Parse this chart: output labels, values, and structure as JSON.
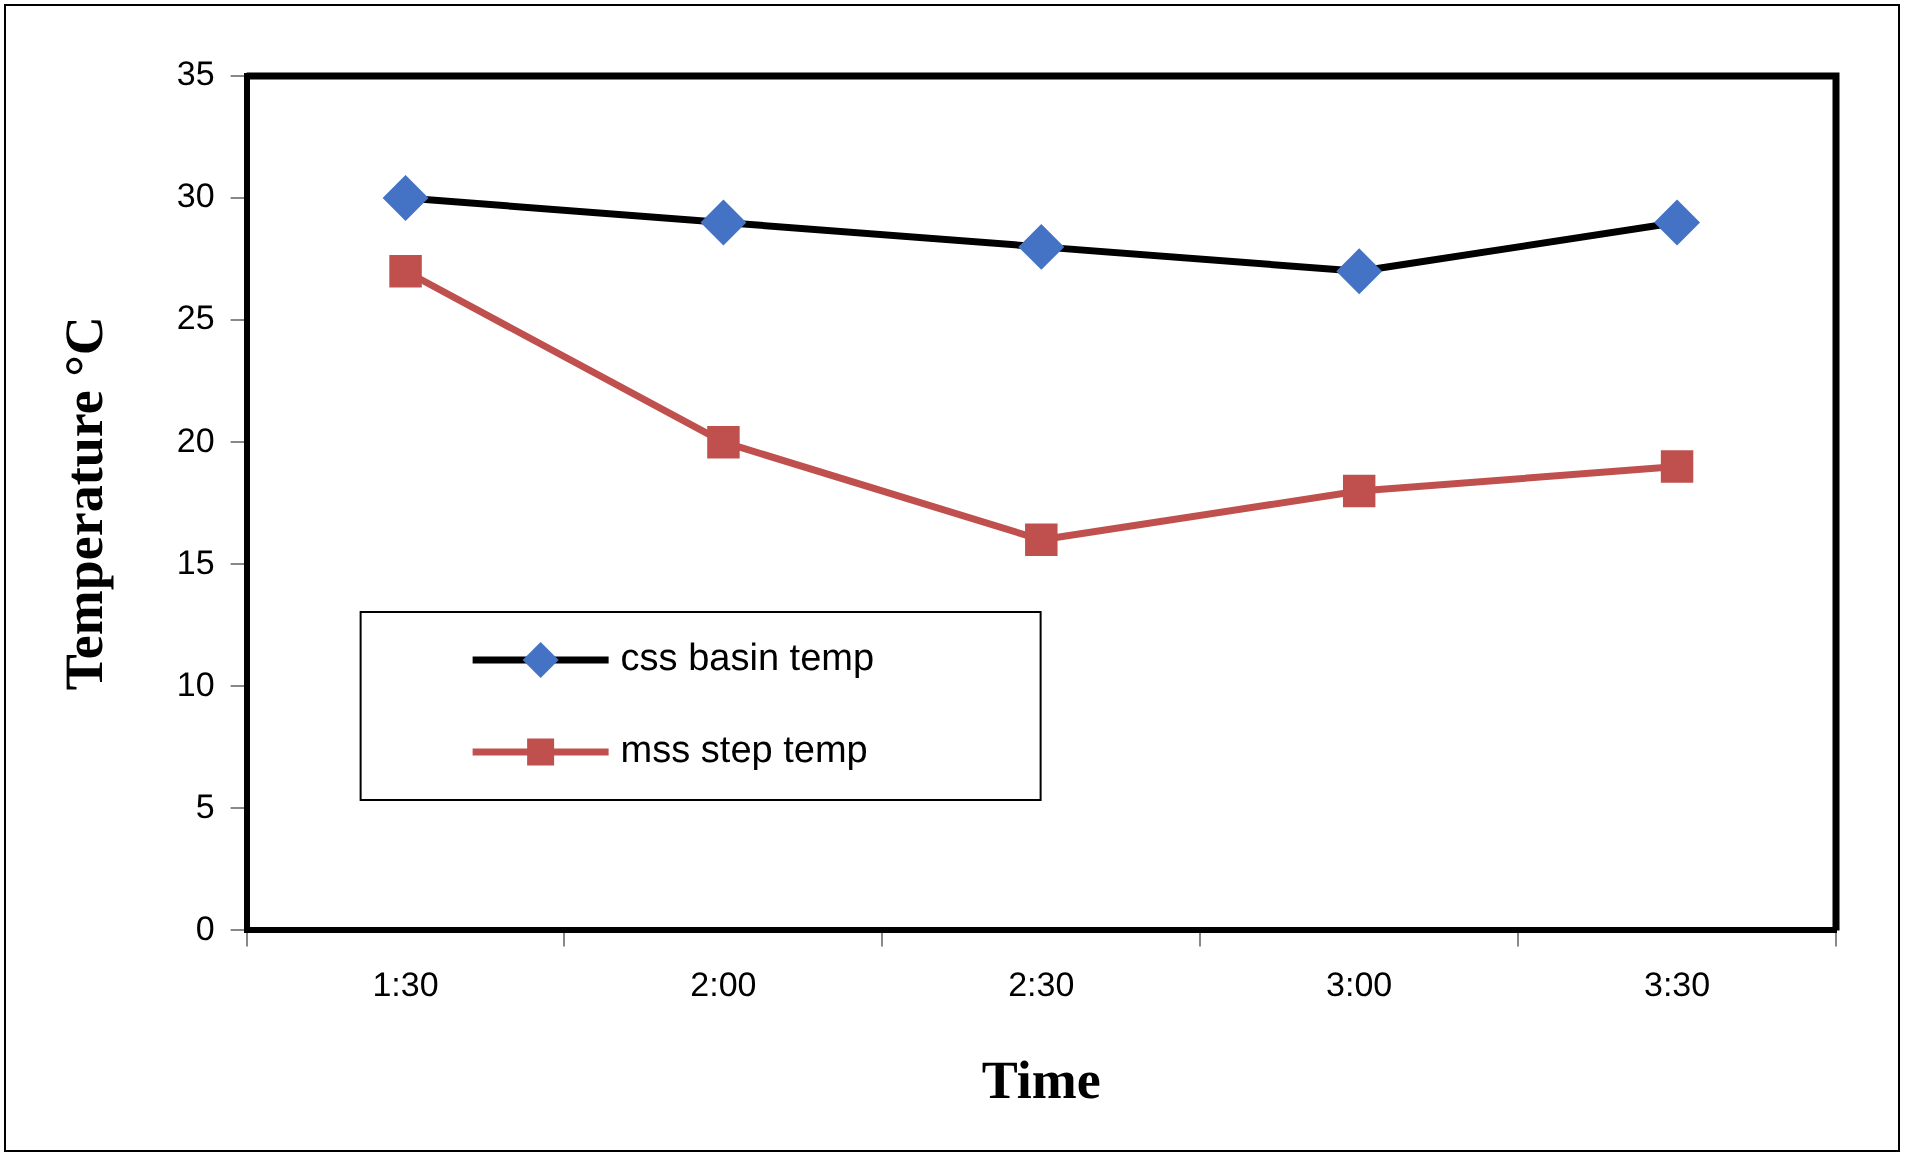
{
  "chart_data": {
    "type": "line",
    "xlabel": "Time",
    "ylabel": "Temperature °C",
    "categories": [
      "1:30",
      "2:00",
      "2:30",
      "3:00",
      "3:30"
    ],
    "series": [
      {
        "name": "css basin temp",
        "color": "#4472c4",
        "marker": "diamond",
        "values": [
          30,
          29,
          28,
          27,
          29
        ]
      },
      {
        "name": "mss step temp",
        "color": "#c0504d",
        "marker": "square",
        "values": [
          27,
          20,
          16,
          18,
          19
        ]
      }
    ],
    "ylim": [
      0,
      35
    ],
    "yticks": [
      0,
      5,
      10,
      15,
      20,
      25,
      30,
      35
    ],
    "grid": false,
    "legend": "left",
    "line_style": "solid"
  }
}
